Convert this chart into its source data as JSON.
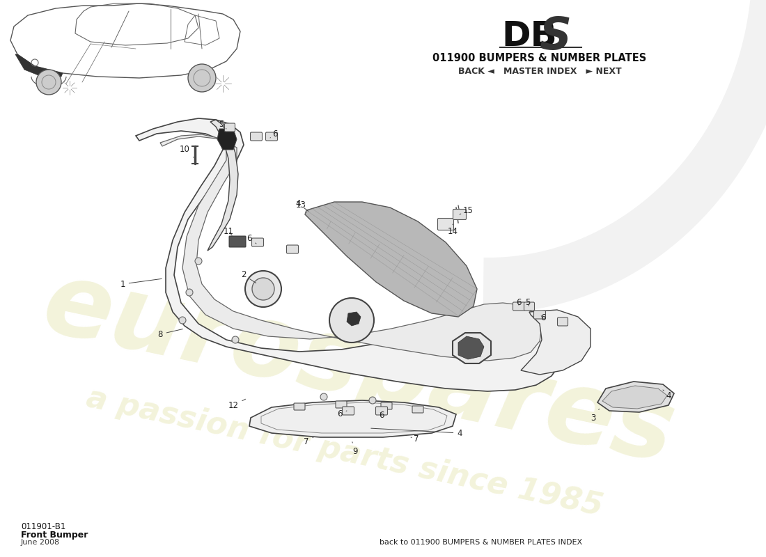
{
  "title_model_db": "DB",
  "title_model_s": "S",
  "title_section": "011900 BUMPERS & NUMBER PLATES",
  "nav_text": "BACK ◄   MASTER INDEX   ► NEXT",
  "part_code": "011901-B1",
  "part_name": "Front Bumper",
  "part_date": "June 2008",
  "footer_text": "back to 011900 BUMPERS & NUMBER PLATES INDEX",
  "bg_color": "#ffffff",
  "watermark_color": "#eeeecc",
  "line_color": "#444444",
  "label_color": "#222222"
}
